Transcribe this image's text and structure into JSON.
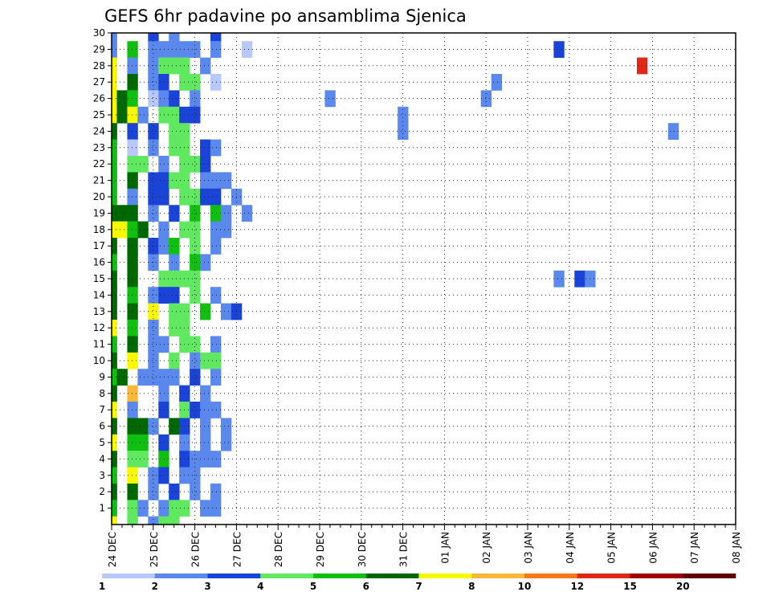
{
  "chart_data": {
    "type": "heatmap",
    "title": "GEFS 6hr padavine po ansamblima Sjenica",
    "y_ticks": [
      "1",
      "2",
      "3",
      "4",
      "5",
      "6",
      "7",
      "8",
      "9",
      "10",
      "11",
      "12",
      "13",
      "14",
      "15",
      "16",
      "17",
      "18",
      "19",
      "20",
      "21",
      "22",
      "23",
      "24",
      "25",
      "26",
      "27",
      "28",
      "29",
      "30"
    ],
    "x_ticks": [
      "24 DEC",
      "25 DEC",
      "26 DEC",
      "27 DEC",
      "28 DEC",
      "29 DEC",
      "30 DEC",
      "31 DEC",
      "01 JAN",
      "02 JAN",
      "03 JAN",
      "04 JAN",
      "05 JAN",
      "06 JAN",
      "07 JAN",
      "08 JAN"
    ],
    "steps_per_day": 4,
    "n_members": 31,
    "colorbar": {
      "labels": [
        "1",
        "2",
        "3",
        "4",
        "5",
        "6",
        "7",
        "8",
        "10",
        "12",
        "15",
        "20"
      ],
      "colors": [
        "#b8c8f8",
        "#5a88ec",
        "#1a44d8",
        "#60e860",
        "#10c010",
        "#006800",
        "#f8f800",
        "#f8b838",
        "#f87818",
        "#e02818",
        "#a00000",
        "#600000"
      ]
    },
    "grid": true,
    "member_rows_top_to_bottom": [
      "1   2 1   2",
      "1 4 11111 1  0                             2",
      "6 1 1333 1                                         9                     1",
      "6 5 12 33 0                          1                                                                       e",
      "654 012 1            1              1                                                                 17  9",
      "6561 3322                   1                                                              1 02  1 011",
      "5 2 2 33                    1                         1                           1          1 11    11",
      "4 0 1 33 21                                                       1      2         2         2  1 1 a",
      "4 33 1 332                                                        2     11         2          1 1",
      "4 5 2233 111                                                      2  1 0 1                            1",
      "4 1 22 3322 1                                                    2 20                  1                     01",
      "555 1 2 4 41 1                                                                                  1",
      "6645 1 33 11                                                                            2      2           3",
      "5 5 214 3 1                                                                              0 1 2        1",
      "4 5 1 1 41                                                                              4     5",
      "5 5  3333                                  1 21                                                            1",
      "5 4 122 3 1                                                                         3 1 1                1",
      "5 5 6 33 4 12                                                                       9",
      "6 4 1 33                                                                      0 2    1 1    3",
      "4 5 11 33 1                                                                 1  1               5 2",
      "5 6 1 3 133                                                       1 42",
      "45 1111 2 1                                                       1 1   2",
      "5 7  1 2 1                                                                          0   3",
      "6 1  2 3211                                                        3 3           2    2 2",
      "5 551 52 1 1                                                                 2  1",
      "6 44 2 1 1 1                                                                 1       1",
      "5 33 4 2111                                                                 3 5",
      "4 6 12 11                                                                           1 43    11",
      "5 5 1 2 1 1                                                                                          1",
      "4 31 133 11                                                                       2         1",
      "6 3 133                                                                           1"
    ]
  }
}
